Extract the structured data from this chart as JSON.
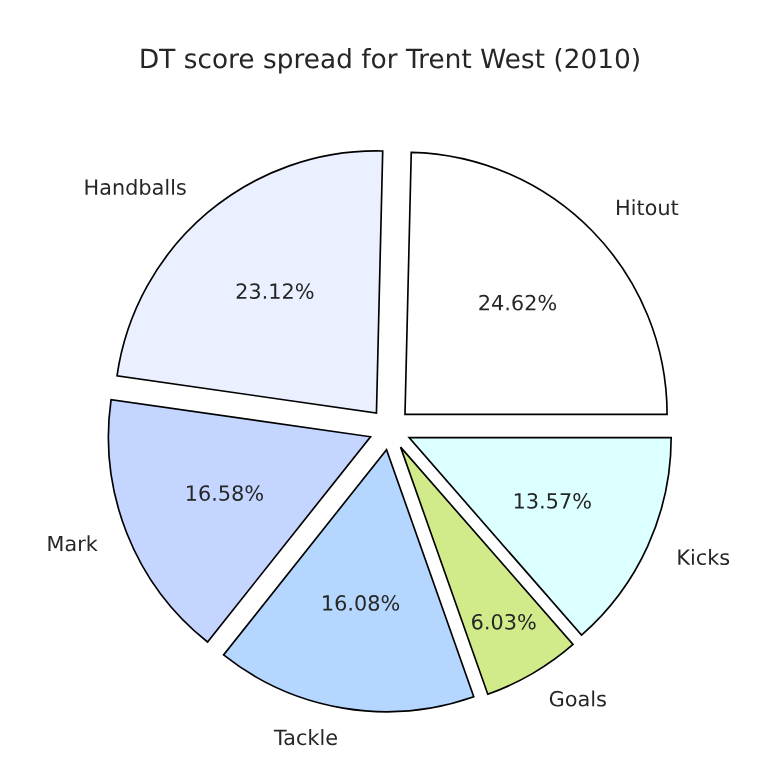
{
  "chart_data": {
    "type": "pie",
    "title": "DT score spread for Trent West (2010)",
    "categories": [
      "Hitout",
      "Handballs",
      "Mark",
      "Tackle",
      "Goals",
      "Kicks"
    ],
    "values": [
      24.62,
      23.12,
      16.58,
      16.08,
      6.03,
      13.57
    ],
    "value_labels": [
      "24.62%",
      "23.12%",
      "16.58%",
      "16.08%",
      "6.03%",
      "13.57%"
    ],
    "colors": [
      "#ffffff",
      "#eaf0ff",
      "#c4d6ff",
      "#b4d6ff",
      "#d2eb8a",
      "#dcffff"
    ],
    "legend": false
  }
}
